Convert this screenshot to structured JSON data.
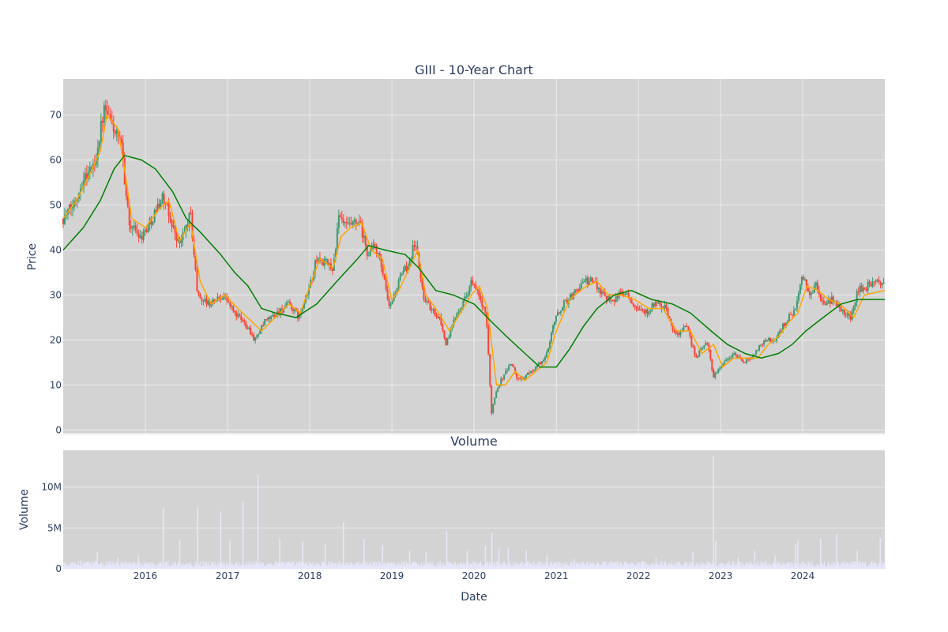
{
  "chart_data": [
    {
      "type": "candlestick",
      "title": "GIII - 10-Year Chart",
      "ylabel": "Price",
      "ylim": [
        -1,
        78
      ],
      "yticks": [
        0,
        10,
        20,
        30,
        40,
        50,
        60,
        70
      ],
      "x_start": "2015-01-01",
      "x_end": "2024-12-31",
      "x_tick_labels": [
        "2016",
        "2017",
        "2018",
        "2019",
        "2020",
        "2021",
        "2022",
        "2023",
        "2024"
      ],
      "grid": true,
      "colors": {
        "background": "#d3d3d3",
        "grid": "#ebebeb",
        "increasing": "#3d9970",
        "decreasing": "#ff4136",
        "ma_short": "#ffa500",
        "ma_long": "#008000"
      },
      "price_path": [
        [
          "2015-01-01",
          47
        ],
        [
          "2015-02-15",
          50
        ],
        [
          "2015-04-01",
          56
        ],
        [
          "2015-05-20",
          59
        ],
        [
          "2015-07-01",
          71
        ],
        [
          "2015-08-15",
          67
        ],
        [
          "2015-09-20",
          62
        ],
        [
          "2015-10-20",
          46
        ],
        [
          "2015-12-15",
          43
        ],
        [
          "2016-02-01",
          47
        ],
        [
          "2016-03-15",
          52
        ],
        [
          "2016-04-20",
          47
        ],
        [
          "2016-06-01",
          41
        ],
        [
          "2016-07-20",
          48
        ],
        [
          "2016-08-20",
          30
        ],
        [
          "2016-10-10",
          28
        ],
        [
          "2016-12-15",
          30
        ],
        [
          "2017-02-01",
          26
        ],
        [
          "2017-04-01",
          23
        ],
        [
          "2017-05-01",
          20
        ],
        [
          "2017-06-15",
          24
        ],
        [
          "2017-08-10",
          26
        ],
        [
          "2017-10-01",
          28
        ],
        [
          "2017-11-15",
          25
        ],
        [
          "2017-12-20",
          30
        ],
        [
          "2018-02-01",
          38
        ],
        [
          "2018-03-15",
          37
        ],
        [
          "2018-04-15",
          36
        ],
        [
          "2018-05-10",
          47
        ],
        [
          "2018-06-15",
          45
        ],
        [
          "2018-08-10",
          46
        ],
        [
          "2018-09-15",
          39
        ],
        [
          "2018-10-20",
          41
        ],
        [
          "2018-11-20",
          35
        ],
        [
          "2018-12-20",
          27
        ],
        [
          "2019-02-01",
          33
        ],
        [
          "2019-03-15",
          37
        ],
        [
          "2019-04-15",
          42
        ],
        [
          "2019-05-20",
          30
        ],
        [
          "2019-06-20",
          27
        ],
        [
          "2019-08-01",
          25
        ],
        [
          "2019-08-30",
          19
        ],
        [
          "2019-10-15",
          26
        ],
        [
          "2019-11-20",
          29
        ],
        [
          "2019-12-20",
          33
        ],
        [
          "2020-01-20",
          30
        ],
        [
          "2020-02-25",
          25
        ],
        [
          "2020-03-18",
          4
        ],
        [
          "2020-04-10",
          9
        ],
        [
          "2020-05-10",
          12
        ],
        [
          "2020-06-15",
          15
        ],
        [
          "2020-07-15",
          11
        ],
        [
          "2020-08-20",
          12
        ],
        [
          "2020-10-01",
          14
        ],
        [
          "2020-11-15",
          16
        ],
        [
          "2020-12-20",
          24
        ],
        [
          "2021-02-01",
          28
        ],
        [
          "2021-03-15",
          30
        ],
        [
          "2021-05-01",
          33
        ],
        [
          "2021-06-15",
          33
        ],
        [
          "2021-08-01",
          30
        ],
        [
          "2021-09-15",
          29
        ],
        [
          "2021-11-01",
          31
        ],
        [
          "2021-12-15",
          28
        ],
        [
          "2022-02-01",
          26
        ],
        [
          "2022-03-15",
          28
        ],
        [
          "2022-05-01",
          27
        ],
        [
          "2022-06-15",
          21
        ],
        [
          "2022-08-01",
          23
        ],
        [
          "2022-09-15",
          16
        ],
        [
          "2022-11-01",
          20
        ],
        [
          "2022-11-30",
          12
        ],
        [
          "2023-01-15",
          15
        ],
        [
          "2023-03-01",
          17
        ],
        [
          "2023-04-15",
          15
        ],
        [
          "2023-06-01",
          17
        ],
        [
          "2023-07-15",
          20
        ],
        [
          "2023-09-01",
          20
        ],
        [
          "2023-10-15",
          24
        ],
        [
          "2023-12-01",
          27
        ],
        [
          "2023-12-31",
          34
        ],
        [
          "2024-02-01",
          30
        ],
        [
          "2024-03-01",
          32
        ],
        [
          "2024-04-01",
          28
        ],
        [
          "2024-05-15",
          29
        ],
        [
          "2024-06-15",
          27
        ],
        [
          "2024-08-01",
          25
        ],
        [
          "2024-09-01",
          31
        ],
        [
          "2024-10-15",
          32
        ],
        [
          "2024-12-15",
          33
        ]
      ],
      "series": [
        {
          "name": "",
          "kind": "moving-average-short",
          "points": [
            [
              "2015-01-01",
              47
            ],
            [
              "2015-03-01",
              51
            ],
            [
              "2015-05-01",
              57
            ],
            [
              "2015-06-15",
              62
            ],
            [
              "2015-07-15",
              70
            ],
            [
              "2015-09-01",
              67
            ],
            [
              "2015-10-01",
              58
            ],
            [
              "2015-11-01",
              47
            ],
            [
              "2016-01-01",
              45
            ],
            [
              "2016-03-01",
              49
            ],
            [
              "2016-04-15",
              51
            ],
            [
              "2016-06-01",
              42
            ],
            [
              "2016-07-20",
              46
            ],
            [
              "2016-09-01",
              33
            ],
            [
              "2016-10-20",
              28
            ],
            [
              "2016-12-20",
              30
            ],
            [
              "2017-02-15",
              27
            ],
            [
              "2017-04-20",
              24
            ],
            [
              "2017-06-01",
              22
            ],
            [
              "2017-08-01",
              25
            ],
            [
              "2017-10-01",
              28
            ],
            [
              "2017-11-20",
              26
            ],
            [
              "2018-01-01",
              32
            ],
            [
              "2018-02-15",
              38
            ],
            [
              "2018-04-15",
              36
            ],
            [
              "2018-05-20",
              43
            ],
            [
              "2018-07-01",
              45
            ],
            [
              "2018-08-20",
              46
            ],
            [
              "2018-10-01",
              40
            ],
            [
              "2018-11-20",
              38
            ],
            [
              "2018-12-31",
              29
            ],
            [
              "2019-02-01",
              31
            ],
            [
              "2019-03-20",
              36
            ],
            [
              "2019-04-25",
              40
            ],
            [
              "2019-06-01",
              30
            ],
            [
              "2019-07-15",
              27
            ],
            [
              "2019-09-15",
              22
            ],
            [
              "2019-11-01",
              26
            ],
            [
              "2019-12-20",
              30
            ],
            [
              "2020-01-25",
              32
            ],
            [
              "2020-03-01",
              27
            ],
            [
              "2020-04-10",
              10
            ],
            [
              "2020-05-20",
              10
            ],
            [
              "2020-07-01",
              13
            ],
            [
              "2020-08-15",
              11
            ],
            [
              "2020-10-01",
              13
            ],
            [
              "2020-11-20",
              15
            ],
            [
              "2021-01-01",
              22
            ],
            [
              "2021-03-01",
              29
            ],
            [
              "2021-05-15",
              32
            ],
            [
              "2021-07-01",
              33
            ],
            [
              "2021-08-20",
              30
            ],
            [
              "2021-10-15",
              30
            ],
            [
              "2021-12-15",
              29
            ],
            [
              "2022-02-15",
              27
            ],
            [
              "2022-04-20",
              27
            ],
            [
              "2022-06-20",
              22
            ],
            [
              "2022-08-20",
              22
            ],
            [
              "2022-10-10",
              17
            ],
            [
              "2022-12-01",
              19
            ],
            [
              "2023-01-10",
              14
            ],
            [
              "2023-03-01",
              16
            ],
            [
              "2023-05-01",
              16
            ],
            [
              "2023-06-15",
              16
            ],
            [
              "2023-08-01",
              19
            ],
            [
              "2023-09-20",
              21
            ],
            [
              "2023-11-01",
              24
            ],
            [
              "2023-12-10",
              26
            ],
            [
              "2024-01-20",
              32
            ],
            [
              "2024-03-10",
              31
            ],
            [
              "2024-04-25",
              29
            ],
            [
              "2024-06-15",
              28
            ],
            [
              "2024-08-15",
              25
            ],
            [
              "2024-10-01",
              30
            ],
            [
              "2024-12-31",
              31
            ]
          ]
        },
        {
          "name": "",
          "kind": "moving-average-long",
          "points": [
            [
              "2015-01-01",
              40
            ],
            [
              "2015-04-01",
              45
            ],
            [
              "2015-06-15",
              51
            ],
            [
              "2015-08-15",
              58
            ],
            [
              "2015-10-01",
              61
            ],
            [
              "2015-12-15",
              60
            ],
            [
              "2016-02-15",
              58
            ],
            [
              "2016-05-01",
              53
            ],
            [
              "2016-07-01",
              47
            ],
            [
              "2016-09-01",
              44
            ],
            [
              "2016-12-01",
              39
            ],
            [
              "2017-02-01",
              35
            ],
            [
              "2017-04-01",
              32
            ],
            [
              "2017-06-01",
              27
            ],
            [
              "2017-08-01",
              26
            ],
            [
              "2017-11-01",
              25
            ],
            [
              "2018-02-01",
              28
            ],
            [
              "2018-05-01",
              33
            ],
            [
              "2018-08-01",
              38
            ],
            [
              "2018-09-20",
              41
            ],
            [
              "2018-12-01",
              40
            ],
            [
              "2019-03-01",
              39
            ],
            [
              "2019-05-01",
              36
            ],
            [
              "2019-07-15",
              31
            ],
            [
              "2019-10-01",
              30
            ],
            [
              "2020-01-01",
              28
            ],
            [
              "2020-03-20",
              24
            ],
            [
              "2020-05-20",
              21
            ],
            [
              "2020-08-15",
              17
            ],
            [
              "2020-10-20",
              14
            ],
            [
              "2021-01-01",
              14
            ],
            [
              "2021-03-01",
              18
            ],
            [
              "2021-05-01",
              23
            ],
            [
              "2021-07-01",
              27
            ],
            [
              "2021-09-15",
              30
            ],
            [
              "2021-12-01",
              31
            ],
            [
              "2022-03-01",
              29
            ],
            [
              "2022-06-01",
              28
            ],
            [
              "2022-08-20",
              26
            ],
            [
              "2022-11-20",
              22
            ],
            [
              "2023-02-01",
              19
            ],
            [
              "2023-04-20",
              17
            ],
            [
              "2023-07-01",
              16
            ],
            [
              "2023-09-15",
              17
            ],
            [
              "2023-11-15",
              19
            ],
            [
              "2024-01-15",
              22
            ],
            [
              "2024-04-01",
              25
            ],
            [
              "2024-06-20",
              28
            ],
            [
              "2024-09-01",
              29
            ],
            [
              "2024-12-31",
              29
            ]
          ]
        }
      ]
    },
    {
      "type": "bar",
      "title": "Volume",
      "xlabel": "Date",
      "ylabel": "Volume",
      "ylim": [
        0,
        14500000
      ],
      "yticks": [
        0,
        5000000,
        10000000
      ],
      "ytick_labels": [
        "0",
        "5M",
        "10M"
      ],
      "x_tick_labels": [
        "2016",
        "2017",
        "2018",
        "2019",
        "2020",
        "2021",
        "2022",
        "2023",
        "2024"
      ],
      "grid": true,
      "colors": {
        "background": "#d3d3d3",
        "bar": "#e6e6fa"
      },
      "baseline_volume": 600000,
      "spikes": [
        [
          "2015-03-20",
          1000000
        ],
        [
          "2015-06-01",
          2000000
        ],
        [
          "2015-09-01",
          1400000
        ],
        [
          "2015-12-01",
          1600000
        ],
        [
          "2016-03-20",
          7500000
        ],
        [
          "2016-06-01",
          3500000
        ],
        [
          "2016-08-20",
          7500000
        ],
        [
          "2016-11-30",
          7000000
        ],
        [
          "2017-01-10",
          3500000
        ],
        [
          "2017-03-10",
          8300000
        ],
        [
          "2017-05-15",
          11500000
        ],
        [
          "2017-08-20",
          3700000
        ],
        [
          "2017-11-30",
          3400000
        ],
        [
          "2018-03-10",
          3000000
        ],
        [
          "2018-05-30",
          5700000
        ],
        [
          "2018-08-30",
          3700000
        ],
        [
          "2018-11-20",
          2900000
        ],
        [
          "2019-03-20",
          2200000
        ],
        [
          "2019-06-01",
          2000000
        ],
        [
          "2019-09-01",
          4600000
        ],
        [
          "2019-12-01",
          2200000
        ],
        [
          "2020-02-20",
          2800000
        ],
        [
          "2020-03-20",
          4400000
        ],
        [
          "2020-04-20",
          2500000
        ],
        [
          "2020-06-01",
          2600000
        ],
        [
          "2020-08-20",
          2300000
        ],
        [
          "2020-11-20",
          1700000
        ],
        [
          "2021-03-20",
          1200000
        ],
        [
          "2021-09-01",
          1000000
        ],
        [
          "2022-03-20",
          1400000
        ],
        [
          "2022-08-30",
          2000000
        ],
        [
          "2022-11-30",
          13800000
        ],
        [
          "2022-12-10",
          3400000
        ],
        [
          "2023-03-20",
          1400000
        ],
        [
          "2023-06-01",
          2200000
        ],
        [
          "2023-08-30",
          1600000
        ],
        [
          "2023-11-30",
          3000000
        ],
        [
          "2023-12-10",
          3500000
        ],
        [
          "2024-03-20",
          3700000
        ],
        [
          "2024-05-30",
          4300000
        ],
        [
          "2024-08-30",
          2200000
        ],
        [
          "2024-12-10",
          3800000
        ]
      ]
    }
  ]
}
